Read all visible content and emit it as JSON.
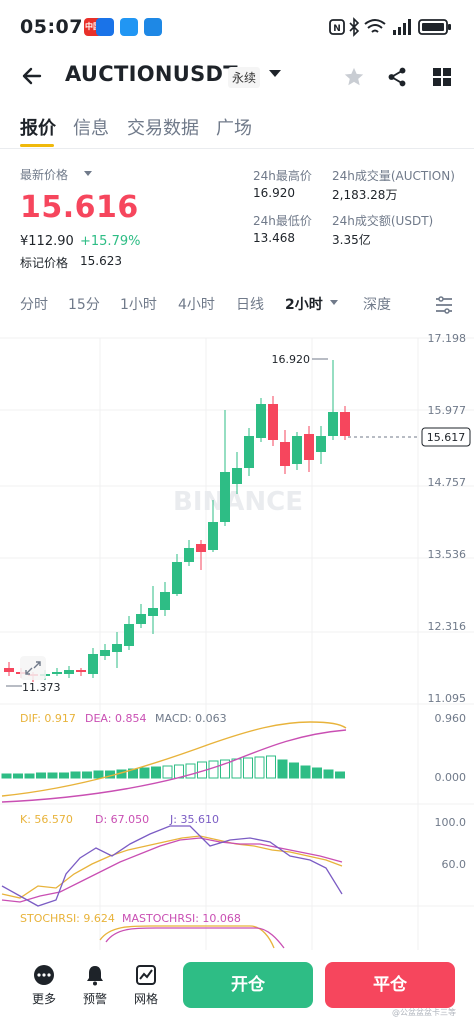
{
  "status_bar": {
    "time": "05:07",
    "apps": [
      {
        "label": "中国",
        "color": "#e8302a"
      },
      {
        "label": "",
        "color": "#1a73e8"
      },
      {
        "label": "",
        "color": "#2196f3"
      },
      {
        "label": "",
        "color": "#1e88e5"
      }
    ],
    "icons": [
      "nfc-icon",
      "bluetooth-icon",
      "wifi-icon",
      "signal-icon",
      "battery-icon"
    ]
  },
  "header": {
    "symbol": "AUCTIONUSDT",
    "badge": "永续",
    "icons": [
      "back-arrow-icon",
      "chevron-down-icon",
      "star-icon",
      "share-icon",
      "grid-icon"
    ]
  },
  "tabs": [
    {
      "label": "报价",
      "active": true
    },
    {
      "label": "信息",
      "active": false
    },
    {
      "label": "交易数据",
      "active": false
    },
    {
      "label": "广场",
      "active": false
    }
  ],
  "price": {
    "last_label": "最新价格",
    "last": "15.616",
    "fiat": "¥112.90",
    "change": "+15.79%",
    "mark_label": "标记价格",
    "mark": "15.623",
    "high_label": "24h最高价",
    "high": "16.920",
    "low_label": "24h最低价",
    "low": "13.468",
    "vol_label": "24h成交量(AUCTION)",
    "vol": "2,183.28万",
    "turnover_label": "24h成交额(USDT)",
    "turnover": "3.35亿"
  },
  "colors": {
    "up": "#2ebd85",
    "down": "#f6465d",
    "accent": "#f0b90b",
    "muted": "#707a8a",
    "dif": "#e8b33b",
    "dea": "#c94fb3"
  },
  "periods": [
    {
      "label": "分时",
      "active": false
    },
    {
      "label": "15分",
      "active": false
    },
    {
      "label": "1小时",
      "active": false
    },
    {
      "label": "4小时",
      "active": false
    },
    {
      "label": "日线",
      "active": false
    },
    {
      "label": "2小时",
      "active": true
    },
    {
      "label": "深度",
      "active": false
    }
  ],
  "chart": {
    "watermark": "BINANCE",
    "price_ticks": [
      "17.198",
      "15.977",
      "14.757",
      "13.536",
      "12.316",
      "11.095"
    ],
    "current_price": "15.617",
    "max_label": "16.920",
    "min_label": "11.373",
    "macd": {
      "dif": "DIF: 0.917",
      "dea": "DEA: 0.854",
      "macd": "MACD: 0.063",
      "ticks": [
        "0.960",
        "0.000"
      ]
    },
    "kdj": {
      "k": "K: 56.570",
      "d": "D: 67.050",
      "j": "J: 35.610",
      "ticks": [
        "100.0",
        "60.0"
      ]
    },
    "stoch": {
      "stochrsi": "STOCHRSI: 9.624",
      "mastochrsi": "MASTOCHRSI: 10.068"
    }
  },
  "bottom_bar": {
    "items": [
      {
        "label": "更多",
        "icon": "more-icon"
      },
      {
        "label": "预警",
        "icon": "bell-icon"
      },
      {
        "label": "网格",
        "icon": "grid-chart-icon"
      }
    ],
    "open": "开仓",
    "close": "平仓",
    "watermark": "@公盆盆盆卡三等"
  }
}
